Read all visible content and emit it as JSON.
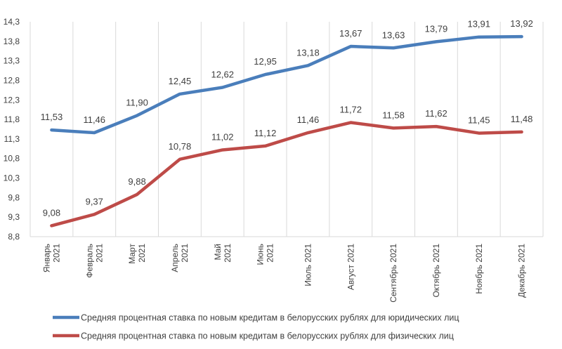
{
  "chart_data": {
    "type": "line",
    "categories": [
      [
        "Январь",
        "2021"
      ],
      [
        "Февраль",
        "2021"
      ],
      [
        "Март",
        "2021"
      ],
      [
        "Апрель",
        "2021"
      ],
      [
        "Май",
        "2021"
      ],
      [
        "Июнь",
        "2021"
      ],
      [
        "Июль 2021"
      ],
      [
        "Август 2021"
      ],
      [
        "Сентябрь 2021"
      ],
      [
        "Октябрь 2021"
      ],
      [
        "Ноябрь 2021"
      ],
      [
        "Декабрь 2021"
      ]
    ],
    "series": [
      {
        "name": "Средняя  процентная ставка по новым кредитам в белорусских рублях для юридических лиц",
        "color": "#4a7ebb",
        "values": [
          11.53,
          11.46,
          11.9,
          12.45,
          12.62,
          12.95,
          13.18,
          13.67,
          13.63,
          13.79,
          13.91,
          13.92
        ],
        "labels": [
          "11,53",
          "11,46",
          "11,90",
          "12,45",
          "12,62",
          "12,95",
          "13,18",
          "13,67",
          "13,63",
          "13,79",
          "13,91",
          "13,92"
        ]
      },
      {
        "name": "Средняя  процентная ставка по новым кредитам в белорусских рублях для физических лиц",
        "color": "#be4b48",
        "values": [
          9.08,
          9.37,
          9.88,
          10.78,
          11.02,
          11.12,
          11.46,
          11.72,
          11.58,
          11.62,
          11.45,
          11.48
        ],
        "labels": [
          "9,08",
          "9,37",
          "9,88",
          "10,78",
          "11,02",
          "11,12",
          "11,46",
          "11,72",
          "11,58",
          "11,62",
          "11,45",
          "11,48"
        ]
      }
    ],
    "ylim": [
      8.8,
      14.3
    ],
    "yticks": [
      8.8,
      9.3,
      9.8,
      10.3,
      10.8,
      11.3,
      11.8,
      12.3,
      12.8,
      13.3,
      13.8,
      14.3
    ],
    "ytick_labels": [
      "8,8",
      "9,3",
      "9,8",
      "10,3",
      "10,8",
      "11,3",
      "11,8",
      "12,3",
      "12,8",
      "13,3",
      "13,8",
      "14,3"
    ],
    "grid": "vertical",
    "legend_position": "bottom",
    "title": "",
    "xlabel": "",
    "ylabel": ""
  }
}
